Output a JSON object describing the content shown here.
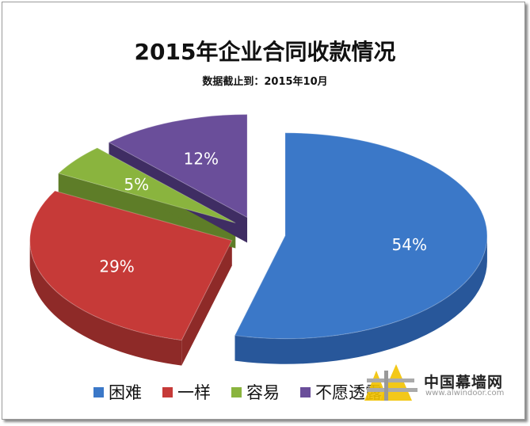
{
  "chart_data": {
    "type": "pie",
    "title": "2015年企业合同收款情况",
    "subtitle": "数据截止到：2015年10月",
    "categories": [
      "困难",
      "一样",
      "容易",
      "不愿透露"
    ],
    "values": [
      54,
      29,
      5,
      12
    ],
    "labels": [
      "54%",
      "29%",
      "5%",
      "12%"
    ],
    "colors": [
      "#3b78c8",
      "#c63a38",
      "#8ab43e",
      "#6a4e9a"
    ],
    "side_colors": [
      "#28579a",
      "#8e2a28",
      "#5e7d28",
      "#3f2d63"
    ],
    "style": "3d-exploded",
    "legend": "bottom"
  },
  "watermark": {
    "name": "中国幕墙网",
    "url": "www.alwindoor.com"
  }
}
